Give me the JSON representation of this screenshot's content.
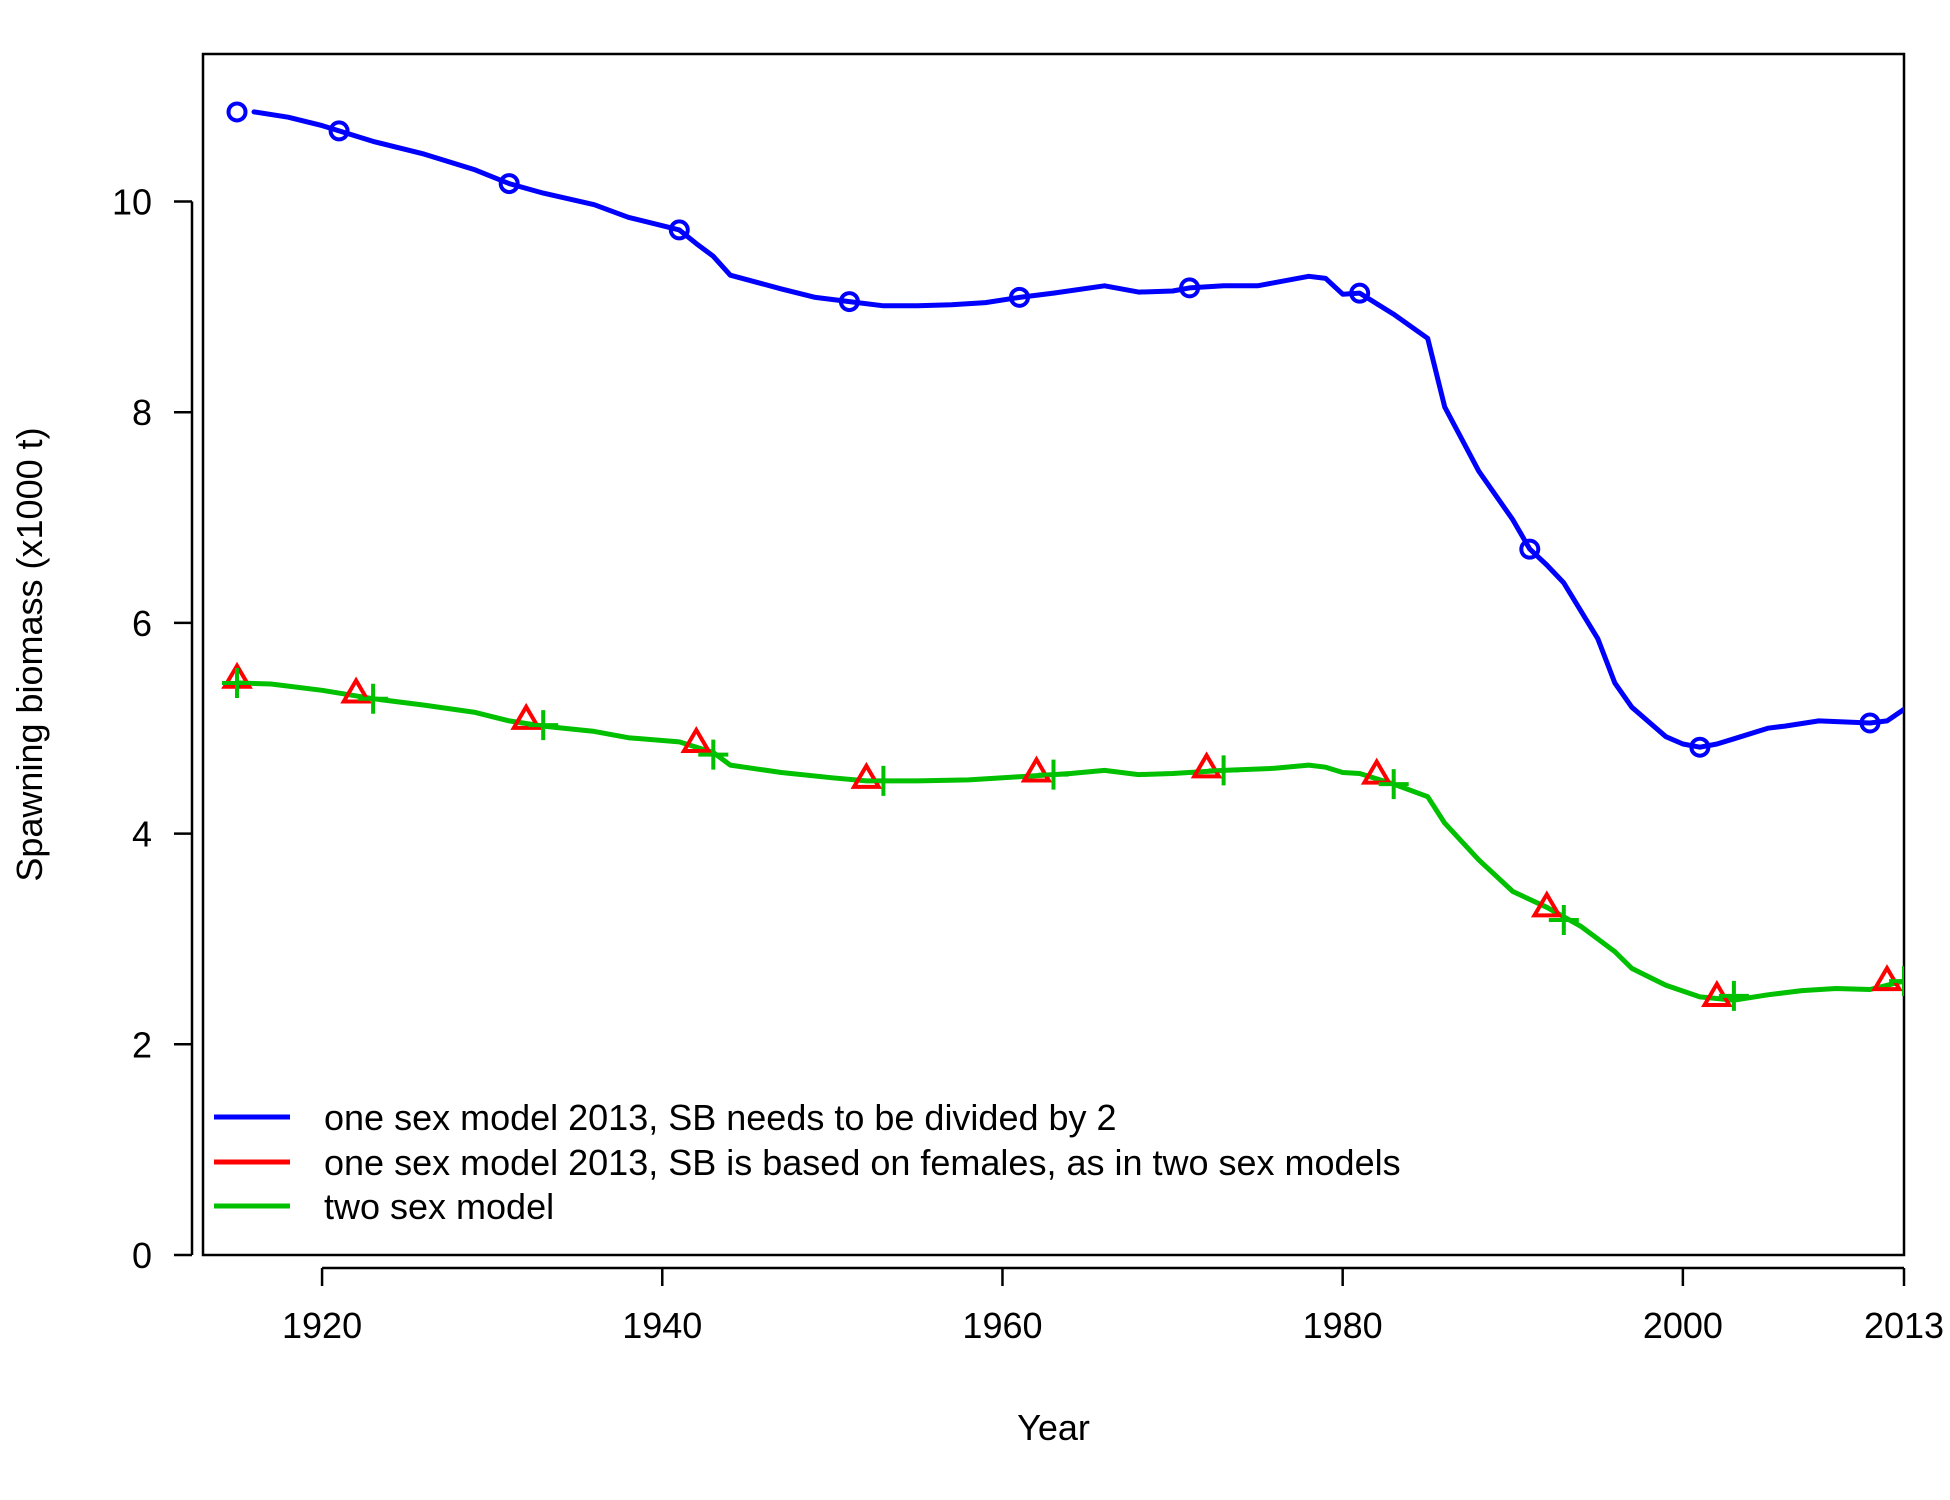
{
  "chart_data": {
    "type": "line",
    "xlabel": "Year",
    "ylabel": "Spawning biomass (x1000 t)",
    "xlim": [
      1913,
      2013
    ],
    "ylim": [
      0,
      11.4
    ],
    "x_ticks": [
      1920,
      1940,
      1960,
      1980,
      2000,
      2013
    ],
    "y_ticks": [
      0,
      2,
      4,
      6,
      8,
      10
    ],
    "grid": false,
    "legend_position": "bottom-left",
    "series": [
      {
        "name": "one sex model 2013, SB needs to be divided by 2",
        "color": "#0000ff",
        "marker": "circle",
        "x": [
          1916,
          1918,
          1920,
          1921,
          1923,
          1926,
          1929,
          1931,
          1933,
          1936,
          1938,
          1940,
          1941,
          1942,
          1943,
          1944,
          1947,
          1949,
          1951,
          1953,
          1955,
          1957,
          1959,
          1961,
          1963,
          1966,
          1968,
          1970,
          1971,
          1973,
          1975,
          1978,
          1979,
          1980,
          1981,
          1983,
          1985,
          1986,
          1988,
          1990,
          1991,
          1992,
          1993,
          1995,
          1996,
          1997,
          1999,
          2000,
          2001,
          2002,
          2003,
          2005,
          2006,
          2008,
          2011,
          2012,
          2013
        ],
        "y": [
          10.85,
          10.8,
          10.72,
          10.67,
          10.57,
          10.45,
          10.3,
          10.17,
          10.08,
          9.97,
          9.85,
          9.77,
          9.73,
          9.6,
          9.48,
          9.3,
          9.17,
          9.09,
          9.05,
          9.01,
          9.01,
          9.02,
          9.04,
          9.09,
          9.13,
          9.2,
          9.14,
          9.15,
          9.18,
          9.2,
          9.2,
          9.29,
          9.27,
          9.12,
          9.13,
          8.93,
          8.7,
          8.05,
          7.44,
          6.98,
          6.7,
          6.55,
          6.38,
          5.85,
          5.43,
          5.2,
          4.92,
          4.85,
          4.82,
          4.85,
          4.9,
          5.0,
          5.02,
          5.07,
          5.05,
          5.07,
          5.18
        ],
        "markers_x": [
          1915,
          1921,
          1931,
          1941,
          1951,
          1961,
          1971,
          1981,
          1991,
          2001,
          2011
        ],
        "markers_y": [
          10.85,
          10.67,
          10.17,
          9.73,
          9.05,
          9.09,
          9.18,
          9.13,
          6.7,
          4.82,
          5.05
        ]
      },
      {
        "name": "one sex model 2013, SB is based on females, as in two sex models",
        "color": "#ff0000",
        "marker": "triangle",
        "markers_x": [
          1915,
          1922,
          1932,
          1942,
          1952,
          1962,
          1972,
          1982,
          1992,
          2002,
          2012
        ],
        "markers_y": [
          5.47,
          5.33,
          5.08,
          4.86,
          4.52,
          4.58,
          4.62,
          4.56,
          3.3,
          2.45,
          2.6
        ]
      },
      {
        "name": "two sex model",
        "color": "#00c000",
        "marker": "plus",
        "x": [
          1915,
          1917,
          1920,
          1923,
          1926,
          1929,
          1931,
          1933,
          1936,
          1938,
          1941,
          1943,
          1944,
          1947,
          1950,
          1952,
          1955,
          1958,
          1961,
          1964,
          1966,
          1968,
          1970,
          1973,
          1976,
          1978,
          1979,
          1980,
          1981,
          1983,
          1985,
          1986,
          1988,
          1990,
          1992,
          1994,
          1996,
          1997,
          1999,
          2001,
          2003,
          2005,
          2007,
          2009,
          2011,
          2013
        ],
        "y": [
          5.43,
          5.42,
          5.36,
          5.28,
          5.22,
          5.15,
          5.07,
          5.02,
          4.97,
          4.91,
          4.87,
          4.77,
          4.65,
          4.58,
          4.53,
          4.5,
          4.5,
          4.51,
          4.54,
          4.57,
          4.6,
          4.56,
          4.57,
          4.6,
          4.62,
          4.65,
          4.63,
          4.58,
          4.57,
          4.47,
          4.35,
          4.1,
          3.75,
          3.45,
          3.3,
          3.12,
          2.88,
          2.72,
          2.56,
          2.45,
          2.42,
          2.47,
          2.51,
          2.53,
          2.52,
          2.6
        ],
        "markers_x": [
          1915,
          1923,
          1933,
          1943,
          1953,
          1963,
          1973,
          1983,
          1993,
          2003,
          2013
        ],
        "markers_y": [
          5.43,
          5.28,
          5.03,
          4.75,
          4.5,
          4.56,
          4.6,
          4.47,
          3.18,
          2.46,
          2.6
        ]
      }
    ]
  }
}
